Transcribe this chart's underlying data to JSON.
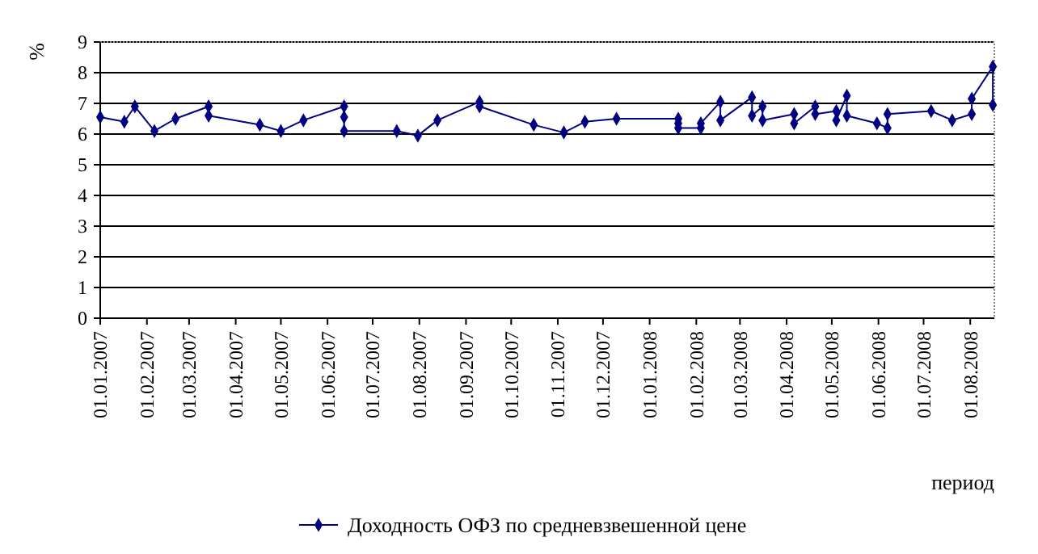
{
  "chart_data": {
    "type": "line",
    "ylabel": "%",
    "xlabel": "период",
    "xlim": [
      "2007-01-01",
      "2008-08-17"
    ],
    "ylim": [
      0,
      9
    ],
    "yticks": [
      0,
      1,
      2,
      3,
      4,
      5,
      6,
      7,
      8,
      9
    ],
    "xticks": [
      {
        "value": "2007-01-01",
        "label": "01.01.2007"
      },
      {
        "value": "2007-02-01",
        "label": "01.02.2007"
      },
      {
        "value": "2007-03-01",
        "label": "01.03.2007"
      },
      {
        "value": "2007-04-01",
        "label": "01.04.2007"
      },
      {
        "value": "2007-05-01",
        "label": "01.05.2007"
      },
      {
        "value": "2007-06-01",
        "label": "01.06.2007"
      },
      {
        "value": "2007-07-01",
        "label": "01.07.2007"
      },
      {
        "value": "2007-08-01",
        "label": "01.08.2007"
      },
      {
        "value": "2007-09-01",
        "label": "01.09.2007"
      },
      {
        "value": "2007-10-01",
        "label": "01.10.2007"
      },
      {
        "value": "2007-11-01",
        "label": "01.11.2007"
      },
      {
        "value": "2007-12-01",
        "label": "01.12.2007"
      },
      {
        "value": "2008-01-01",
        "label": "01.01.2008"
      },
      {
        "value": "2008-02-01",
        "label": "01.02.2008"
      },
      {
        "value": "2008-03-01",
        "label": "01.03.2008"
      },
      {
        "value": "2008-04-01",
        "label": "01.04.2008"
      },
      {
        "value": "2008-05-01",
        "label": "01.05.2008"
      },
      {
        "value": "2008-06-01",
        "label": "01.06.2008"
      },
      {
        "value": "2008-07-01",
        "label": "01.07.2008"
      },
      {
        "value": "2008-08-01",
        "label": "01.08.2008"
      }
    ],
    "grid": "y",
    "legend": "bottom",
    "marker": "diamond",
    "line_style": "solid",
    "series": [
      {
        "name": "Доходность ОФЗ по средневзвешенной цене",
        "color": "#000080",
        "x": [
          "2007-01-01",
          "2007-01-17",
          "2007-01-24",
          "2007-02-06",
          "2007-02-20",
          "2007-03-14",
          "2007-03-14",
          "2007-04-17",
          "2007-05-01",
          "2007-05-16",
          "2007-06-12",
          "2007-06-12",
          "2007-06-12",
          "2007-07-17",
          "2007-07-31",
          "2007-08-13",
          "2007-09-10",
          "2007-09-10",
          "2007-10-16",
          "2007-11-05",
          "2007-11-19",
          "2007-12-10",
          "2008-01-20",
          "2008-01-20",
          "2008-01-20",
          "2008-02-04",
          "2008-02-04",
          "2008-02-17",
          "2008-02-17",
          "2008-03-09",
          "2008-03-09",
          "2008-03-16",
          "2008-03-16",
          "2008-04-06",
          "2008-04-06",
          "2008-04-20",
          "2008-04-20",
          "2008-05-04",
          "2008-05-04",
          "2008-05-11",
          "2008-05-11",
          "2008-05-31",
          "2008-06-07",
          "2008-06-07",
          "2008-07-06",
          "2008-07-20",
          "2008-08-02",
          "2008-08-02",
          "2008-08-16",
          "2008-08-16"
        ],
        "values": [
          6.55,
          6.4,
          6.9,
          6.1,
          6.5,
          6.9,
          6.6,
          6.3,
          6.1,
          6.45,
          6.9,
          6.55,
          6.1,
          6.1,
          5.95,
          6.45,
          7.05,
          6.9,
          6.3,
          6.05,
          6.4,
          6.5,
          6.5,
          6.35,
          6.2,
          6.2,
          6.35,
          7.05,
          6.45,
          7.2,
          6.6,
          6.9,
          6.45,
          6.65,
          6.35,
          6.9,
          6.65,
          6.75,
          6.45,
          7.25,
          6.6,
          6.35,
          6.2,
          6.65,
          6.75,
          6.45,
          6.65,
          7.15,
          8.2,
          6.95
        ]
      }
    ]
  }
}
